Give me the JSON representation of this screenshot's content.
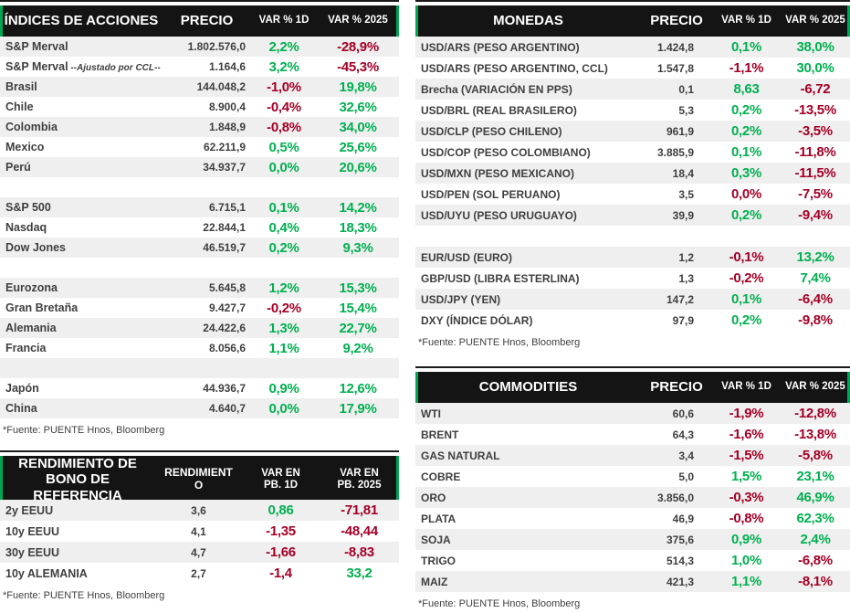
{
  "colors": {
    "positive": "#00B050",
    "negative": "#A50026",
    "header_bg": "#141414",
    "header_text": "#FFFFFF",
    "accent_green": "#00A651",
    "row_stripe": "#EFEFEF",
    "text": "#3F3F3F"
  },
  "tables": {
    "indices": {
      "title": "ÍNDICES DE ACCIONES",
      "col_price": "PRECIO",
      "col_var1d": "VAR % 1D",
      "col_var2025": "VAR % 2025",
      "source": "*Fuente: PUENTE Hnos, Bloomberg",
      "rows": [
        {
          "label": "S&P Merval",
          "price": "1.802.576,0",
          "var1d": "2,2%",
          "var1d_color": "pos",
          "var2025": "-28,9%",
          "var2025_color": "neg"
        },
        {
          "label": "S&P Merval",
          "note": "--Ajustado por CCL--",
          "price": "1.164,6",
          "var1d": "3,2%",
          "var1d_color": "pos",
          "var2025": "-45,3%",
          "var2025_color": "neg"
        },
        {
          "label": "Brasil",
          "price": "144.048,2",
          "var1d": "-1,0%",
          "var1d_color": "neg",
          "var2025": "19,8%",
          "var2025_color": "pos"
        },
        {
          "label": "Chile",
          "price": "8.900,4",
          "var1d": "-0,4%",
          "var1d_color": "neg",
          "var2025": "32,6%",
          "var2025_color": "pos"
        },
        {
          "label": "Colombia",
          "price": "1.848,9",
          "var1d": "-0,8%",
          "var1d_color": "neg",
          "var2025": "34,0%",
          "var2025_color": "pos"
        },
        {
          "label": "Mexico",
          "price": "62.211,9",
          "var1d": "0,5%",
          "var1d_color": "pos",
          "var2025": "25,6%",
          "var2025_color": "pos"
        },
        {
          "label": "Perú",
          "price": "34.937,7",
          "var1d": "0,0%",
          "var1d_color": "pos",
          "var2025": "20,6%",
          "var2025_color": "pos"
        },
        {
          "blank": true
        },
        {
          "label": "S&P 500",
          "price": "6.715,1",
          "var1d": "0,1%",
          "var1d_color": "pos",
          "var2025": "14,2%",
          "var2025_color": "pos"
        },
        {
          "label": "Nasdaq",
          "price": "22.844,1",
          "var1d": "0,4%",
          "var1d_color": "pos",
          "var2025": "18,3%",
          "var2025_color": "pos"
        },
        {
          "label": "Dow Jones",
          "price": "46.519,7",
          "var1d": "0,2%",
          "var1d_color": "pos",
          "var2025": "9,3%",
          "var2025_color": "pos"
        },
        {
          "blank": true
        },
        {
          "label": "Eurozona",
          "price": "5.645,8",
          "var1d": "1,2%",
          "var1d_color": "pos",
          "var2025": "15,3%",
          "var2025_color": "pos"
        },
        {
          "label": "Gran Bretaña",
          "price": "9.427,7",
          "var1d": "-0,2%",
          "var1d_color": "neg",
          "var2025": "15,4%",
          "var2025_color": "pos"
        },
        {
          "label": "Alemania",
          "price": "24.422,6",
          "var1d": "1,3%",
          "var1d_color": "pos",
          "var2025": "22,7%",
          "var2025_color": "pos"
        },
        {
          "label": "Francia",
          "price": "8.056,6",
          "var1d": "1,1%",
          "var1d_color": "pos",
          "var2025": "9,2%",
          "var2025_color": "pos"
        },
        {
          "blank": true
        },
        {
          "label": "Japón",
          "price": "44.936,7",
          "var1d": "0,9%",
          "var1d_color": "pos",
          "var2025": "12,6%",
          "var2025_color": "pos"
        },
        {
          "label": "China",
          "price": "4.640,7",
          "var1d": "0,0%",
          "var1d_color": "pos",
          "var2025": "17,9%",
          "var2025_color": "pos"
        }
      ]
    },
    "bonos": {
      "title": "RENDIMIENTO DE BONO DE REFERENCIA",
      "col_price": "RENDIMIENTO",
      "col_var1d": "VAR EN PB. 1D",
      "col_var2025": "VAR EN PB. 2025",
      "source": "*Fuente: PUENTE Hnos, Bloomberg",
      "rows": [
        {
          "label": "2y EEUU",
          "price": "3,6",
          "var1d": "0,86",
          "var1d_color": "pos",
          "var2025": "-71,81",
          "var2025_color": "neg"
        },
        {
          "label": "10y EEUU",
          "price": "4,1",
          "var1d": "-1,35",
          "var1d_color": "neg",
          "var2025": "-48,44",
          "var2025_color": "neg"
        },
        {
          "label": "30y EEUU",
          "price": "4,7",
          "var1d": "-1,66",
          "var1d_color": "neg",
          "var2025": "-8,83",
          "var2025_color": "neg"
        },
        {
          "label": "10y ALEMANIA",
          "price": "2,7",
          "var1d": "-1,4",
          "var1d_color": "neg",
          "var2025": "33,2",
          "var2025_color": "pos"
        }
      ]
    },
    "monedas": {
      "title": "MONEDAS",
      "col_price": "PRECIO",
      "col_var1d": "VAR % 1D",
      "col_var2025": "VAR % 2025",
      "source": "*Fuente: PUENTE Hnos, Bloomberg",
      "rows": [
        {
          "label": "USD/ARS (PESO ARGENTINO)",
          "price": "1.424,8",
          "var1d": "0,1%",
          "var1d_color": "pos",
          "var2025": "38,0%",
          "var2025_color": "pos"
        },
        {
          "label": "USD/ARS (PESO ARGENTINO, CCL)",
          "price": "1.547,8",
          "var1d": "-1,1%",
          "var1d_color": "neg",
          "var2025": "30,0%",
          "var2025_color": "pos"
        },
        {
          "label": "Brecha (VARIACIÓN EN PPS)",
          "price": "0,1",
          "var1d": "8,63",
          "var1d_color": "pos",
          "var2025": "-6,72",
          "var2025_color": "neg"
        },
        {
          "label": "USD/BRL (REAL BRASILERO)",
          "price": "5,3",
          "var1d": "0,2%",
          "var1d_color": "pos",
          "var2025": "-13,5%",
          "var2025_color": "neg"
        },
        {
          "label": "USD/CLP (PESO CHILENO)",
          "price": "961,9",
          "var1d": "0,2%",
          "var1d_color": "pos",
          "var2025": "-3,5%",
          "var2025_color": "neg"
        },
        {
          "label": "USD/COP (PESO COLOMBIANO)",
          "price": "3.885,9",
          "var1d": "0,1%",
          "var1d_color": "pos",
          "var2025": "-11,8%",
          "var2025_color": "neg"
        },
        {
          "label": "USD/MXN (PESO MEXICANO)",
          "price": "18,4",
          "var1d": "0,3%",
          "var1d_color": "pos",
          "var2025": "-11,5%",
          "var2025_color": "neg"
        },
        {
          "label": "USD/PEN (SOL PERUANO)",
          "price": "3,5",
          "var1d": "0,0%",
          "var1d_color": "neg",
          "var2025": "-7,5%",
          "var2025_color": "neg"
        },
        {
          "label": "USD/UYU (PESO URUGUAYO)",
          "price": "39,9",
          "var1d": "0,2%",
          "var1d_color": "pos",
          "var2025": "-9,4%",
          "var2025_color": "neg"
        },
        {
          "blank": true
        },
        {
          "label": "EUR/USD (EURO)",
          "price": "1,2",
          "var1d": "-0,1%",
          "var1d_color": "neg",
          "var2025": "13,2%",
          "var2025_color": "pos"
        },
        {
          "label": "GBP/USD (LIBRA ESTERLINA)",
          "price": "1,3",
          "var1d": "-0,2%",
          "var1d_color": "neg",
          "var2025": "7,4%",
          "var2025_color": "pos"
        },
        {
          "label": "USD/JPY (YEN)",
          "price": "147,2",
          "var1d": "0,1%",
          "var1d_color": "pos",
          "var2025": "-6,4%",
          "var2025_color": "neg"
        },
        {
          "label": "DXY (ÍNDICE DÓLAR)",
          "price": "97,9",
          "var1d": "0,2%",
          "var1d_color": "pos",
          "var2025": "-9,8%",
          "var2025_color": "neg"
        }
      ]
    },
    "commodities": {
      "title": "COMMODITIES",
      "col_price": "PRECIO",
      "col_var1d": "VAR % 1D",
      "col_var2025": "VAR % 2025",
      "source": "*Fuente: PUENTE Hnos, Bloomberg",
      "rows": [
        {
          "label": "WTI",
          "price": "60,6",
          "var1d": "-1,9%",
          "var1d_color": "neg",
          "var2025": "-12,8%",
          "var2025_color": "neg"
        },
        {
          "label": "BRENT",
          "price": "64,3",
          "var1d": "-1,6%",
          "var1d_color": "neg",
          "var2025": "-13,8%",
          "var2025_color": "neg"
        },
        {
          "label": "GAS NATURAL",
          "price": "3,4",
          "var1d": "-1,5%",
          "var1d_color": "neg",
          "var2025": "-5,8%",
          "var2025_color": "neg"
        },
        {
          "label": "COBRE",
          "price": "5,0",
          "var1d": "1,5%",
          "var1d_color": "pos",
          "var2025": "23,1%",
          "var2025_color": "pos"
        },
        {
          "label": "ORO",
          "price": "3.856,0",
          "var1d": "-0,3%",
          "var1d_color": "neg",
          "var2025": "46,9%",
          "var2025_color": "pos"
        },
        {
          "label": "PLATA",
          "price": "46,9",
          "var1d": "-0,8%",
          "var1d_color": "neg",
          "var2025": "62,3%",
          "var2025_color": "pos"
        },
        {
          "label": "SOJA",
          "price": "375,6",
          "var1d": "0,9%",
          "var1d_color": "pos",
          "var2025": "2,4%",
          "var2025_color": "pos"
        },
        {
          "label": "TRIGO",
          "price": "514,3",
          "var1d": "1,0%",
          "var1d_color": "pos",
          "var2025": "-6,8%",
          "var2025_color": "neg"
        },
        {
          "label": "MAIZ",
          "price": "421,3",
          "var1d": "1,1%",
          "var1d_color": "pos",
          "var2025": "-8,1%",
          "var2025_color": "neg"
        }
      ]
    }
  }
}
